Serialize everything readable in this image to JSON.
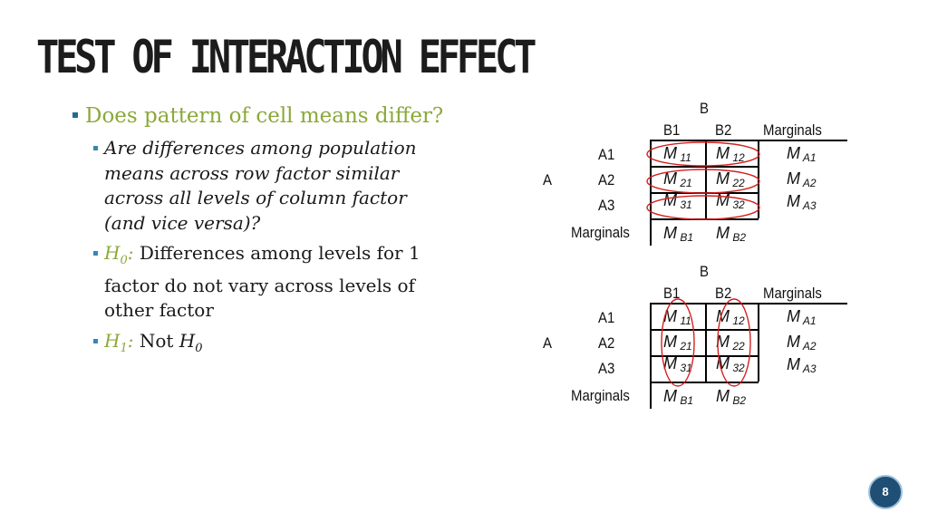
{
  "title": "TEST OF INTERACTION EFFECT",
  "bullets": {
    "q": "Does pattern of cell means differ?",
    "sub1": "Are differences among population means across row factor similar across all levels of column factor (and vice versa)?",
    "h0_label": "H",
    "h0_sub": "0",
    "h0_colon": ":",
    "h0_text": " Differences among levels for 1 factor do not vary across levels of other factor",
    "h1_label": "H",
    "h1_sub": "1",
    "h1_colon": ":",
    "h1_text": " Not ",
    "h1_h": "H",
    "h1_h_sub": "0"
  },
  "tables": [
    {
      "col_factor": "B",
      "row_factor": "A",
      "cols": [
        "B1",
        "B2",
        "Marginals"
      ],
      "rows": [
        "A1",
        "A2",
        "A3",
        "Marginals"
      ],
      "cells": [
        [
          "11",
          "12"
        ],
        [
          "21",
          "22"
        ],
        [
          "31",
          "32"
        ]
      ],
      "row_marginals": [
        "A1",
        "A2",
        "A3"
      ],
      "col_marginals": [
        "B1",
        "B2"
      ],
      "m": "M",
      "circled": "rows"
    },
    {
      "col_factor": "B",
      "row_factor": "A",
      "cols": [
        "B1",
        "B2",
        "Marginals"
      ],
      "rows": [
        "A1",
        "A2",
        "A3",
        "Marginals"
      ],
      "cells": [
        [
          "11",
          "12"
        ],
        [
          "21",
          "22"
        ],
        [
          "31",
          "32"
        ]
      ],
      "row_marginals": [
        "A1",
        "A2",
        "A3"
      ],
      "col_marginals": [
        "B1",
        "B2"
      ],
      "m": "M",
      "circled": "columns"
    }
  ],
  "page_number": "8",
  "colors": {
    "accent_green": "#8ba83a",
    "bullet_blue": "#1f6b96",
    "circle_red": "#d42020",
    "badge": "#1f4f74"
  }
}
